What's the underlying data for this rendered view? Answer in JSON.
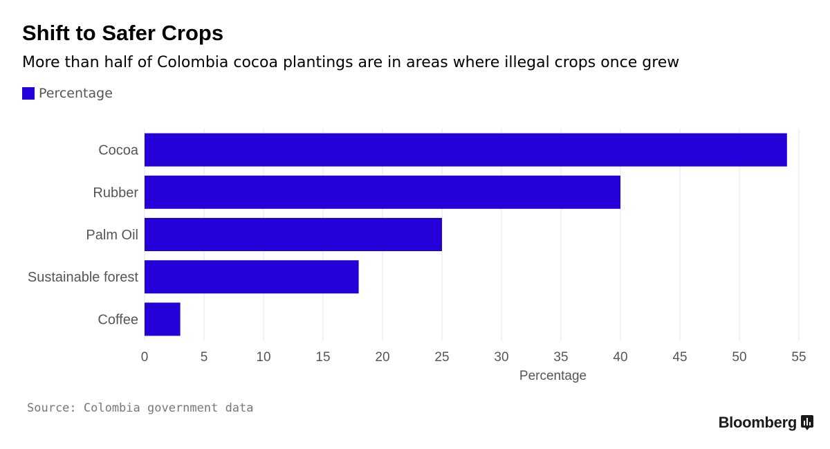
{
  "header": {
    "title": "Shift to Safer Crops",
    "subtitle": "More than half of Colombia cocoa plantings are in areas where illegal crops once grew"
  },
  "legend": {
    "label": "Percentage",
    "swatch_icon": "square-swatch-icon"
  },
  "colors": {
    "bar": "#2600d9",
    "grid": "#e6e6e6",
    "tick_text": "#555555",
    "axis_label": "#555555"
  },
  "chart_data": {
    "type": "bar",
    "orientation": "horizontal",
    "categories": [
      "Cocoa",
      "Rubber",
      "Palm Oil",
      "Sustainable forest",
      "Coffee"
    ],
    "series": [
      {
        "name": "Percentage",
        "values": [
          54,
          40,
          25,
          18,
          3
        ]
      }
    ],
    "xlabel": "Percentage",
    "ylabel": "",
    "xlim": [
      0,
      55
    ],
    "xticks": [
      0,
      5,
      10,
      15,
      20,
      25,
      30,
      35,
      40,
      45,
      50,
      55
    ],
    "grid": "vertical",
    "legend_position": "top-left"
  },
  "footer": {
    "source": "Source: Colombia government data",
    "brand": "Bloomberg",
    "brand_icon": "bloomberg-chart-icon"
  }
}
